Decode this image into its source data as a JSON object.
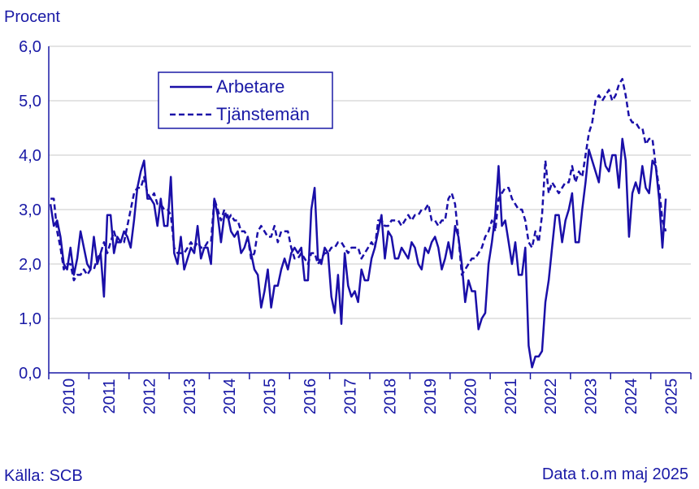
{
  "colors": {
    "text": "#1a1aa6",
    "series": "#1a0fa8",
    "grid": "#c8c8c8",
    "axis": "#1a1aa6"
  },
  "chart_data": {
    "type": "line",
    "ylabel": "Procent",
    "ylim": [
      0,
      6
    ],
    "y_ticks": [
      0,
      1,
      2,
      3,
      4,
      5,
      6
    ],
    "y_tick_labels": [
      "0,0",
      "1,0",
      "2,0",
      "3,0",
      "4,0",
      "5,0",
      "6,0"
    ],
    "x_range": [
      "2010-01",
      "2025-12"
    ],
    "x_ticks": [
      "2010",
      "2011",
      "2012",
      "2013",
      "2014",
      "2015",
      "2016",
      "2017",
      "2018",
      "2019",
      "2020",
      "2021",
      "2022",
      "2023",
      "2024",
      "2025"
    ],
    "grid": "horizontal",
    "legend_position": "top-left",
    "series": [
      {
        "name": "Arbetare",
        "style": "solid",
        "x": [
          "2010-01",
          "2010-02",
          "2010-03",
          "2010-04",
          "2010-05",
          "2010-06",
          "2010-07",
          "2010-08",
          "2010-09",
          "2010-10",
          "2010-11",
          "2010-12",
          "2011-01",
          "2011-02",
          "2011-03",
          "2011-04",
          "2011-05",
          "2011-06",
          "2011-07",
          "2011-08",
          "2011-09",
          "2011-10",
          "2011-11",
          "2011-12",
          "2012-01",
          "2012-02",
          "2012-03",
          "2012-04",
          "2012-05",
          "2012-06",
          "2012-07",
          "2012-08",
          "2012-09",
          "2012-10",
          "2012-11",
          "2012-12",
          "2013-01",
          "2013-02",
          "2013-03",
          "2013-04",
          "2013-05",
          "2013-06",
          "2013-07",
          "2013-08",
          "2013-09",
          "2013-10",
          "2013-11",
          "2013-12",
          "2014-01",
          "2014-02",
          "2014-03",
          "2014-04",
          "2014-05",
          "2014-06",
          "2014-07",
          "2014-08",
          "2014-09",
          "2014-10",
          "2014-11",
          "2014-12",
          "2015-01",
          "2015-02",
          "2015-03",
          "2015-04",
          "2015-05",
          "2015-06",
          "2015-07",
          "2015-08",
          "2015-09",
          "2015-10",
          "2015-11",
          "2015-12",
          "2016-01",
          "2016-02",
          "2016-03",
          "2016-04",
          "2016-05",
          "2016-06",
          "2016-07",
          "2016-08",
          "2016-09",
          "2016-10",
          "2016-11",
          "2016-12",
          "2017-01",
          "2017-02",
          "2017-03",
          "2017-04",
          "2017-05",
          "2017-06",
          "2017-07",
          "2017-08",
          "2017-09",
          "2017-10",
          "2017-11",
          "2017-12",
          "2018-01",
          "2018-02",
          "2018-03",
          "2018-04",
          "2018-05",
          "2018-06",
          "2018-07",
          "2018-08",
          "2018-09",
          "2018-10",
          "2018-11",
          "2018-12",
          "2019-01",
          "2019-02",
          "2019-03",
          "2019-04",
          "2019-05",
          "2019-06",
          "2019-07",
          "2019-08",
          "2019-09",
          "2019-10",
          "2019-11",
          "2019-12",
          "2020-01",
          "2020-02",
          "2020-03",
          "2020-04",
          "2020-05",
          "2020-06",
          "2020-07",
          "2020-08",
          "2020-09",
          "2020-10",
          "2020-11",
          "2020-12",
          "2021-01",
          "2021-02",
          "2021-03",
          "2021-04",
          "2021-05",
          "2021-06",
          "2021-07",
          "2021-08",
          "2021-09",
          "2021-10",
          "2021-11",
          "2021-12",
          "2022-01",
          "2022-02",
          "2022-03",
          "2022-04",
          "2022-05",
          "2022-06",
          "2022-07",
          "2022-08",
          "2022-09",
          "2022-10",
          "2022-11",
          "2022-12",
          "2023-01",
          "2023-02",
          "2023-03",
          "2023-04",
          "2023-05",
          "2023-06",
          "2023-07",
          "2023-08",
          "2023-09",
          "2023-10",
          "2023-11",
          "2023-12",
          "2024-01",
          "2024-02",
          "2024-03",
          "2024-04",
          "2024-05",
          "2024-06",
          "2024-07",
          "2024-08",
          "2024-09",
          "2024-10",
          "2024-11",
          "2024-12",
          "2025-01",
          "2025-02",
          "2025-03",
          "2025-04",
          "2025-05"
        ],
        "values": [
          3.1,
          2.7,
          2.8,
          2.5,
          2.0,
          1.9,
          2.3,
          1.8,
          2.1,
          2.6,
          2.3,
          2.0,
          1.9,
          2.5,
          2.0,
          2.2,
          1.4,
          2.9,
          2.9,
          2.2,
          2.5,
          2.4,
          2.6,
          2.5,
          2.3,
          2.8,
          3.4,
          3.7,
          3.9,
          3.2,
          3.2,
          3.1,
          2.7,
          3.2,
          2.7,
          2.7,
          3.6,
          2.2,
          2.0,
          2.5,
          1.9,
          2.1,
          2.3,
          2.2,
          2.7,
          2.1,
          2.3,
          2.3,
          2.0,
          3.2,
          2.9,
          2.4,
          2.9,
          2.9,
          2.6,
          2.5,
          2.6,
          2.2,
          2.3,
          2.5,
          2.2,
          1.9,
          1.8,
          1.2,
          1.5,
          1.9,
          1.2,
          1.6,
          1.6,
          1.9,
          2.1,
          1.9,
          2.2,
          2.3,
          2.2,
          2.3,
          1.7,
          1.7,
          3.0,
          3.4,
          2.1,
          2.0,
          2.3,
          2.2,
          1.4,
          1.1,
          1.8,
          0.9,
          2.2,
          1.6,
          1.4,
          1.5,
          1.3,
          1.9,
          1.7,
          1.7,
          2.1,
          2.3,
          2.6,
          2.9,
          2.1,
          2.6,
          2.5,
          2.1,
          2.1,
          2.3,
          2.2,
          2.1,
          2.4,
          2.3,
          2.0,
          1.9,
          2.3,
          2.2,
          2.4,
          2.5,
          2.3,
          1.9,
          2.1,
          2.4,
          2.1,
          2.7,
          2.5,
          2.0,
          1.3,
          1.7,
          1.5,
          1.5,
          0.8,
          1.0,
          1.1,
          2.0,
          2.4,
          2.9,
          3.8,
          2.7,
          2.8,
          2.4,
          2.0,
          2.4,
          1.8,
          1.8,
          2.3,
          0.5,
          0.1,
          0.3,
          0.3,
          0.4,
          1.3,
          1.7,
          2.3,
          2.9,
          2.9,
          2.4,
          2.8,
          3.0,
          3.3,
          2.4,
          2.4,
          3.0,
          3.5,
          4.1,
          3.9,
          3.7,
          3.5,
          4.1,
          3.8,
          3.7,
          4.0,
          4.0,
          3.4,
          4.3,
          3.9,
          2.5,
          3.3,
          3.5,
          3.3,
          3.8,
          3.4,
          3.3,
          3.9,
          3.8,
          3.2,
          2.3,
          3.2
        ]
      },
      {
        "name": "Tjänstemän",
        "style": "dashed",
        "x": [
          "2010-01",
          "2010-02",
          "2010-03",
          "2010-04",
          "2010-05",
          "2010-06",
          "2010-07",
          "2010-08",
          "2010-09",
          "2010-10",
          "2010-11",
          "2010-12",
          "2011-01",
          "2011-02",
          "2011-03",
          "2011-04",
          "2011-05",
          "2011-06",
          "2011-07",
          "2011-08",
          "2011-09",
          "2011-10",
          "2011-11",
          "2011-12",
          "2012-01",
          "2012-02",
          "2012-03",
          "2012-04",
          "2012-05",
          "2012-06",
          "2012-07",
          "2012-08",
          "2012-09",
          "2012-10",
          "2012-11",
          "2012-12",
          "2013-01",
          "2013-02",
          "2013-03",
          "2013-04",
          "2013-05",
          "2013-06",
          "2013-07",
          "2013-08",
          "2013-09",
          "2013-10",
          "2013-11",
          "2013-12",
          "2014-01",
          "2014-02",
          "2014-03",
          "2014-04",
          "2014-05",
          "2014-06",
          "2014-07",
          "2014-08",
          "2014-09",
          "2014-10",
          "2014-11",
          "2014-12",
          "2015-01",
          "2015-02",
          "2015-03",
          "2015-04",
          "2015-05",
          "2015-06",
          "2015-07",
          "2015-08",
          "2015-09",
          "2015-10",
          "2015-11",
          "2015-12",
          "2016-01",
          "2016-02",
          "2016-03",
          "2016-04",
          "2016-05",
          "2016-06",
          "2016-07",
          "2016-08",
          "2016-09",
          "2016-10",
          "2016-11",
          "2016-12",
          "2017-01",
          "2017-02",
          "2017-03",
          "2017-04",
          "2017-05",
          "2017-06",
          "2017-07",
          "2017-08",
          "2017-09",
          "2017-10",
          "2017-11",
          "2017-12",
          "2018-01",
          "2018-02",
          "2018-03",
          "2018-04",
          "2018-05",
          "2018-06",
          "2018-07",
          "2018-08",
          "2018-09",
          "2018-10",
          "2018-11",
          "2018-12",
          "2019-01",
          "2019-02",
          "2019-03",
          "2019-04",
          "2019-05",
          "2019-06",
          "2019-07",
          "2019-08",
          "2019-09",
          "2019-10",
          "2019-11",
          "2019-12",
          "2020-01",
          "2020-02",
          "2020-03",
          "2020-04",
          "2020-05",
          "2020-06",
          "2020-07",
          "2020-08",
          "2020-09",
          "2020-10",
          "2020-11",
          "2020-12",
          "2021-01",
          "2021-02",
          "2021-03",
          "2021-04",
          "2021-05",
          "2021-06",
          "2021-07",
          "2021-08",
          "2021-09",
          "2021-10",
          "2021-11",
          "2021-12",
          "2022-01",
          "2022-02",
          "2022-03",
          "2022-04",
          "2022-05",
          "2022-06",
          "2022-07",
          "2022-08",
          "2022-09",
          "2022-10",
          "2022-11",
          "2022-12",
          "2023-01",
          "2023-02",
          "2023-03",
          "2023-04",
          "2023-05",
          "2023-06",
          "2023-07",
          "2023-08",
          "2023-09",
          "2023-10",
          "2023-11",
          "2023-12",
          "2024-01",
          "2024-02",
          "2024-03",
          "2024-04",
          "2024-05",
          "2024-06",
          "2024-07",
          "2024-08",
          "2024-09",
          "2024-10",
          "2024-11",
          "2024-12",
          "2025-01",
          "2025-02",
          "2025-03",
          "2025-04",
          "2025-05"
        ],
        "values": [
          3.2,
          3.2,
          2.6,
          2.3,
          1.9,
          2.0,
          2.0,
          1.7,
          1.8,
          1.8,
          1.9,
          1.8,
          1.9,
          1.9,
          2.1,
          2.2,
          2.4,
          2.2,
          2.4,
          2.6,
          2.4,
          2.4,
          2.4,
          2.7,
          3.0,
          3.3,
          3.4,
          3.4,
          3.6,
          3.3,
          3.2,
          3.3,
          3.1,
          3.1,
          3.0,
          3.0,
          2.9,
          2.3,
          2.2,
          2.2,
          2.2,
          2.3,
          2.4,
          2.3,
          2.4,
          2.3,
          2.3,
          2.4,
          2.4,
          3.2,
          3.0,
          2.8,
          3.0,
          2.8,
          2.9,
          2.8,
          2.8,
          2.6,
          2.6,
          2.5,
          2.1,
          2.2,
          2.6,
          2.7,
          2.6,
          2.5,
          2.5,
          2.7,
          2.4,
          2.6,
          2.6,
          2.6,
          2.3,
          2.1,
          2.1,
          2.2,
          2.1,
          2.0,
          2.2,
          2.2,
          2.0,
          2.1,
          2.2,
          2.2,
          2.3,
          2.3,
          2.4,
          2.4,
          2.3,
          2.2,
          2.3,
          2.3,
          2.3,
          2.1,
          2.2,
          2.3,
          2.4,
          2.3,
          2.8,
          2.8,
          2.7,
          2.7,
          2.8,
          2.8,
          2.8,
          2.7,
          2.8,
          2.9,
          2.8,
          2.9,
          2.9,
          3.0,
          3.0,
          3.1,
          2.8,
          2.8,
          2.7,
          2.8,
          2.8,
          3.2,
          3.3,
          3.1,
          2.5,
          1.8,
          1.9,
          2.0,
          2.1,
          2.1,
          2.2,
          2.3,
          2.5,
          2.6,
          2.8,
          2.6,
          3.2,
          3.3,
          3.4,
          3.4,
          3.2,
          3.1,
          3.0,
          3.0,
          2.8,
          2.4,
          2.3,
          2.6,
          2.4,
          2.9,
          3.9,
          3.3,
          3.5,
          3.4,
          3.3,
          3.4,
          3.5,
          3.5,
          3.8,
          3.5,
          3.7,
          3.6,
          4.0,
          4.4,
          4.6,
          5.0,
          5.1,
          5.0,
          5.1,
          5.2,
          5.0,
          5.1,
          5.3,
          5.4,
          5.1,
          4.7,
          4.6,
          4.6,
          4.5,
          4.5,
          4.2,
          4.3,
          4.3,
          3.8,
          3.4,
          2.8,
          2.6
        ]
      }
    ]
  },
  "footer": {
    "source": "Källa: SCB",
    "note": "Data t.o.m maj 2025"
  }
}
